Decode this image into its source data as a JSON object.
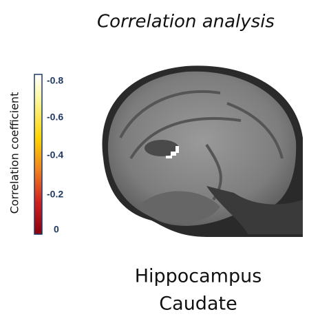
{
  "title": "Correlation analysis",
  "colorbar": {
    "label": "Correlation coefficient",
    "ticks": [
      "-0.8",
      "-0.6",
      "-0.4",
      "-0.2",
      "0"
    ]
  },
  "labels": [
    "Hippocampus",
    "Caudate"
  ]
}
